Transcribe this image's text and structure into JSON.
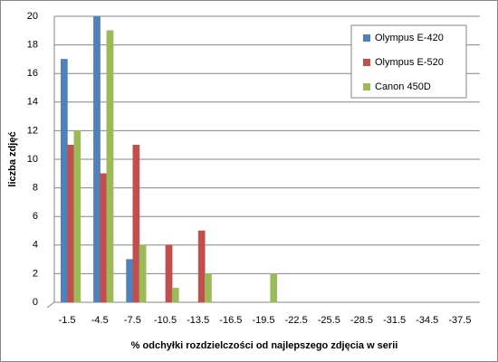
{
  "chart_data": {
    "type": "bar",
    "x_label": "% odchyłki rozdzielczości od najlepszego zdjęcia w serii",
    "y_label": "liczba zdjęć",
    "categories": [
      "-1.5",
      "-4.5",
      "-7.5",
      "-10.5",
      "-13.5",
      "-16.5",
      "-19.5",
      "-22.5",
      "-25.5",
      "-28.5",
      "-31.5",
      "-34.5",
      "-37.5"
    ],
    "series": [
      {
        "name": "Olympus E-420",
        "color": "#4f81bd",
        "values": [
          17,
          20,
          3,
          0,
          0,
          0,
          0,
          0,
          0,
          0,
          0,
          0,
          0
        ]
      },
      {
        "name": "Olympus E-520",
        "color": "#c0504d",
        "values": [
          11,
          9,
          11,
          4,
          5,
          0,
          0,
          0,
          0,
          0,
          0,
          0,
          0
        ]
      },
      {
        "name": "Canon 450D",
        "color": "#9bbb59",
        "values": [
          12,
          19,
          4,
          1,
          2,
          0,
          2,
          0,
          0,
          0,
          0,
          0,
          0
        ]
      }
    ],
    "ylim": [
      0,
      20
    ],
    "yticks": [
      0,
      2,
      4,
      6,
      8,
      10,
      12,
      14,
      16,
      18,
      20
    ],
    "grid": true,
    "legend": "top-right"
  }
}
